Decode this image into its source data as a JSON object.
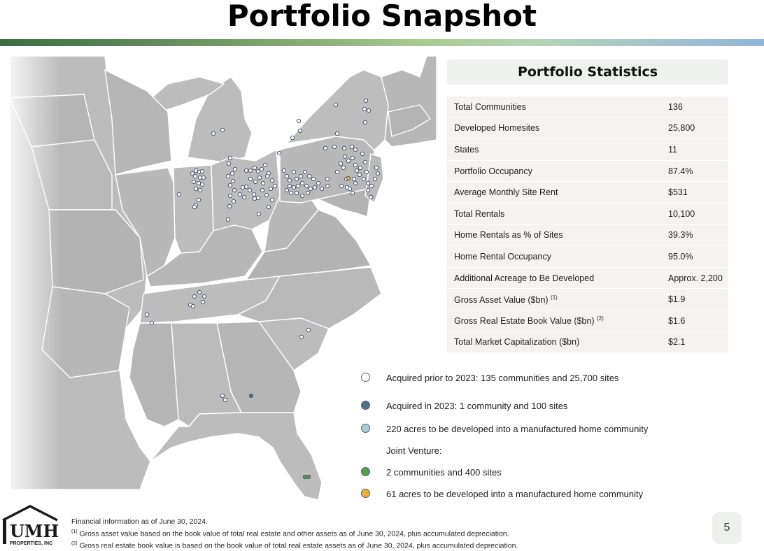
{
  "page": {
    "title": "Portfolio Snapshot",
    "page_number": "5"
  },
  "stats": {
    "header": "Portfolio Statistics",
    "rows": [
      {
        "label": "Total Communities",
        "sup": "",
        "value": "136"
      },
      {
        "label": "Developed Homesites",
        "sup": "",
        "value": "25,800"
      },
      {
        "label": "States",
        "sup": "",
        "value": "11"
      },
      {
        "label": "Portfolio Occupancy",
        "sup": "",
        "value": "87.4%"
      },
      {
        "label": "Average Monthly Site Rent",
        "sup": "",
        "value": "$531"
      },
      {
        "label": "Total Rentals",
        "sup": "",
        "value": "10,100"
      },
      {
        "label": "Home Rentals as % of Sites",
        "sup": "",
        "value": "39.3%"
      },
      {
        "label": "Home Rental Occupancy",
        "sup": "",
        "value": "95.0%"
      },
      {
        "label": "Additional Acreage to Be Developed",
        "sup": "",
        "value": "Approx. 2,200"
      },
      {
        "label": "Gross Asset Value ($bn)",
        "sup": "(1)",
        "value": "$1.9"
      },
      {
        "label": "Gross Real Estate Book Value ($bn)",
        "sup": "(2)",
        "value": "$1.6"
      },
      {
        "label": "Total Market Capitalization ($bn)",
        "sup": "",
        "value": "$2.1"
      }
    ]
  },
  "legend": {
    "items": [
      {
        "key": "acquired_prior",
        "text": "Acquired prior to 2023: 135 communities and 25,700 sites",
        "color": "#ffffff"
      },
      {
        "key": "acquired_2023",
        "text": "Acquired in 2023: 1 community and 100 sites",
        "color": "#4e6f86"
      },
      {
        "key": "acres_220",
        "text": "220 acres to be developed into a manufactured home community",
        "color": "#a3cfd8"
      },
      {
        "key": "jv_label",
        "text": "Joint Venture:",
        "color": ""
      },
      {
        "key": "jv_communities",
        "text": "2 communities and 400 sites",
        "color": "#5a9a4a"
      },
      {
        "key": "jv_acres",
        "text": "61 acres to be developed into a manufactured home community",
        "color": "#f0b02a"
      }
    ]
  },
  "logo": {
    "text": "UMH",
    "subtext": "PROPERTIES, INC"
  },
  "footnotes": {
    "line1": "Financial information as of June 30, 2024.",
    "line2_sup": "(1)",
    "line2": "Gross asset value based on the book value of total real estate and other assets as of June 30, 2024, plus accumulated depreciation.",
    "line3_sup": "(2)",
    "line3": "Gross real estate book value is based on the book value of total real estate assets as of June 30, 2024, plus accumulated depreciation."
  },
  "map_points": {
    "acquired_prior": [
      [
        523,
        144
      ],
      [
        521,
        156
      ],
      [
        527,
        158
      ],
      [
        480,
        150
      ],
      [
        427,
        173
      ],
      [
        429,
        187
      ],
      [
        522,
        175
      ],
      [
        305,
        191
      ],
      [
        318,
        186
      ],
      [
        482,
        191
      ],
      [
        418,
        197
      ],
      [
        399,
        219
      ],
      [
        329,
        226
      ],
      [
        327,
        234
      ],
      [
        336,
        242
      ],
      [
        332,
        248
      ],
      [
        326,
        252
      ],
      [
        333,
        259
      ],
      [
        329,
        265
      ],
      [
        335,
        272
      ],
      [
        329,
        280
      ],
      [
        334,
        288
      ],
      [
        328,
        295
      ],
      [
        326,
        314
      ],
      [
        352,
        244
      ],
      [
        358,
        244
      ],
      [
        364,
        240
      ],
      [
        369,
        245
      ],
      [
        374,
        242
      ],
      [
        379,
        236
      ],
      [
        384,
        248
      ],
      [
        347,
        268
      ],
      [
        352,
        267
      ],
      [
        358,
        256
      ],
      [
        365,
        260
      ],
      [
        371,
        254
      ],
      [
        376,
        262
      ],
      [
        382,
        252
      ],
      [
        389,
        258
      ],
      [
        393,
        266
      ],
      [
        343,
        278
      ],
      [
        349,
        282
      ],
      [
        357,
        272
      ],
      [
        363,
        278
      ],
      [
        369,
        283
      ],
      [
        375,
        272
      ],
      [
        381,
        279
      ],
      [
        387,
        270
      ],
      [
        389,
        286
      ],
      [
        384,
        296
      ],
      [
        370,
        306
      ],
      [
        364,
        284
      ],
      [
        275,
        248
      ],
      [
        280,
        244
      ],
      [
        285,
        246
      ],
      [
        289,
        245
      ],
      [
        279,
        252
      ],
      [
        286,
        254
      ],
      [
        291,
        254
      ],
      [
        277,
        260
      ],
      [
        284,
        262
      ],
      [
        289,
        264
      ],
      [
        280,
        270
      ],
      [
        286,
        272
      ],
      [
        256,
        278
      ],
      [
        280,
        294
      ],
      [
        278,
        296
      ],
      [
        284,
        286
      ],
      [
        406,
        244
      ],
      [
        410,
        252
      ],
      [
        414,
        258
      ],
      [
        420,
        246
      ],
      [
        424,
        256
      ],
      [
        430,
        252
      ],
      [
        436,
        246
      ],
      [
        442,
        252
      ],
      [
        448,
        256
      ],
      [
        414,
        266
      ],
      [
        420,
        268
      ],
      [
        426,
        266
      ],
      [
        432,
        262
      ],
      [
        438,
        266
      ],
      [
        444,
        270
      ],
      [
        410,
        272
      ],
      [
        416,
        276
      ],
      [
        424,
        276
      ],
      [
        432,
        280
      ],
      [
        440,
        276
      ],
      [
        450,
        268
      ],
      [
        455,
        262
      ],
      [
        460,
        270
      ],
      [
        468,
        266
      ],
      [
        468,
        256
      ],
      [
        465,
        212
      ],
      [
        478,
        210
      ],
      [
        492,
        212
      ],
      [
        503,
        210
      ],
      [
        508,
        214
      ],
      [
        493,
        224
      ],
      [
        498,
        230
      ],
      [
        504,
        226
      ],
      [
        508,
        236
      ],
      [
        510,
        244
      ],
      [
        514,
        250
      ],
      [
        506,
        256
      ],
      [
        508,
        262
      ],
      [
        500,
        270
      ],
      [
        504,
        276
      ],
      [
        487,
        234
      ],
      [
        482,
        246
      ],
      [
        491,
        240
      ],
      [
        495,
        256
      ],
      [
        488,
        266
      ],
      [
        496,
        268
      ],
      [
        518,
        220
      ],
      [
        522,
        232
      ],
      [
        515,
        240
      ],
      [
        524,
        246
      ],
      [
        520,
        256
      ],
      [
        526,
        262
      ],
      [
        531,
        266
      ],
      [
        526,
        272
      ],
      [
        538,
        240
      ],
      [
        540,
        248
      ],
      [
        536,
        256
      ],
      [
        530,
        282
      ],
      [
        285,
        418
      ],
      [
        278,
        424
      ],
      [
        292,
        424
      ],
      [
        290,
        432
      ],
      [
        272,
        436
      ],
      [
        276,
        438
      ],
      [
        210,
        450
      ],
      [
        217,
        462
      ],
      [
        441,
        472
      ],
      [
        431,
        482
      ],
      [
        318,
        566
      ],
      [
        322,
        572
      ]
    ],
    "acquired_2023": [
      [
        359,
        566
      ]
    ],
    "jv_communities": [
      [
        436,
        682
      ],
      [
        441,
        682
      ]
    ],
    "jv_acres": [
      [
        498,
        255
      ]
    ]
  }
}
